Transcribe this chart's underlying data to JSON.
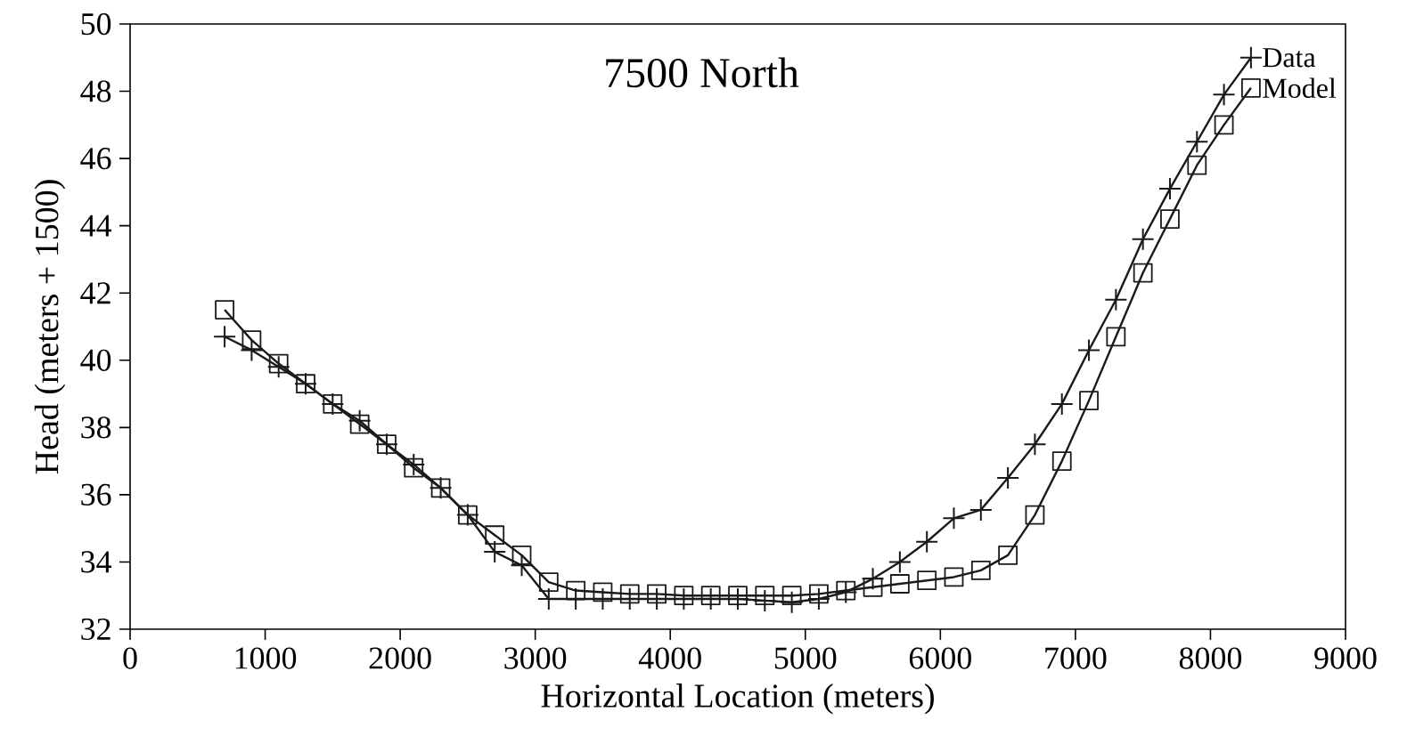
{
  "chart_data": {
    "type": "line",
    "title": "7500 North",
    "xlabel": "Horizontal Location (meters)",
    "ylabel": "Head (meters + 1500)",
    "x": [
      700,
      900,
      1100,
      1300,
      1500,
      1700,
      1900,
      2100,
      2300,
      2500,
      2700,
      2900,
      3100,
      3300,
      3500,
      3700,
      3900,
      4100,
      4300,
      4500,
      4700,
      4900,
      5100,
      5300,
      5500,
      5700,
      5900,
      6100,
      6300,
      6500,
      6700,
      6900,
      7100,
      7300,
      7500,
      7700,
      7900,
      8100,
      8300
    ],
    "xlim": [
      0,
      9000
    ],
    "xticks": [
      0,
      1000,
      2000,
      3000,
      4000,
      5000,
      6000,
      7000,
      8000,
      9000
    ],
    "ylim": [
      32,
      50
    ],
    "yticks": [
      32,
      34,
      36,
      38,
      40,
      42,
      44,
      46,
      48,
      50
    ],
    "grid": false,
    "line_style": "solid",
    "legend": "top right",
    "series": [
      {
        "name": "Data",
        "color": "#1a1a1a",
        "marker": "cross",
        "values": [
          40.7,
          40.3,
          39.8,
          39.3,
          38.7,
          38.2,
          37.5,
          36.9,
          36.2,
          35.4,
          34.3,
          33.9,
          32.9,
          32.9,
          32.9,
          32.9,
          32.9,
          32.9,
          32.9,
          32.9,
          32.85,
          32.8,
          32.9,
          33.1,
          33.5,
          34.0,
          34.6,
          35.3,
          35.55,
          36.5,
          37.5,
          38.7,
          40.3,
          41.8,
          43.6,
          45.1,
          46.5,
          47.9,
          49.0
        ]
      },
      {
        "name": "Model",
        "color": "#1a1a1a",
        "marker": "square",
        "values": [
          41.5,
          40.6,
          39.9,
          39.3,
          38.7,
          38.1,
          37.5,
          36.8,
          36.2,
          35.4,
          34.8,
          34.2,
          33.4,
          33.15,
          33.1,
          33.05,
          33.05,
          33.0,
          33.0,
          33.0,
          33.0,
          33.0,
          33.05,
          33.15,
          33.25,
          33.35,
          33.45,
          33.55,
          33.75,
          34.2,
          35.4,
          37.0,
          38.8,
          40.7,
          42.6,
          44.2,
          45.8,
          47.0,
          48.1
        ]
      }
    ]
  }
}
